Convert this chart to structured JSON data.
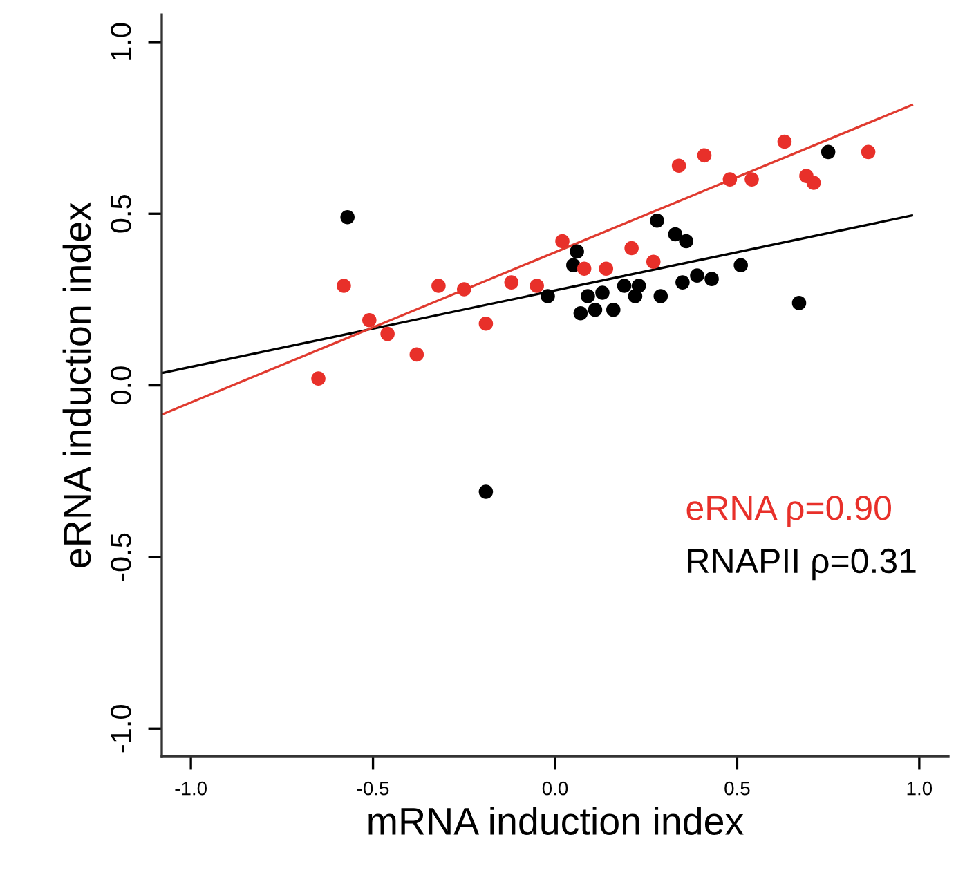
{
  "chart_data": {
    "type": "scatter",
    "xlabel": "mRNA induction index",
    "ylabel": "eRNA induction index",
    "xlim": [
      -1.08,
      1.08
    ],
    "ylim": [
      -1.08,
      1.08
    ],
    "xticks": [
      {
        "value": -1,
        "label": "-1.0"
      },
      {
        "value": -0.5,
        "label": "-0.5"
      },
      {
        "value": 0,
        "label": "0.0"
      },
      {
        "value": 0.5,
        "label": "0.5"
      },
      {
        "value": 1,
        "label": "1.0"
      }
    ],
    "yticks": [
      {
        "value": -1,
        "label": "-1.0"
      },
      {
        "value": -0.5,
        "label": "-0.5"
      },
      {
        "value": 0,
        "label": "0.0"
      },
      {
        "value": 0.5,
        "label": "0.5"
      },
      {
        "value": 1,
        "label": "1.0"
      }
    ],
    "grid": false,
    "legend": "right",
    "marker": "circle",
    "series": [
      {
        "name": "RNAPII ρ=0.31",
        "color": "#000000",
        "x": [
          -0.57,
          -0.19,
          -0.02,
          0.06,
          0.05,
          0.09,
          0.13,
          0.07,
          0.11,
          0.16,
          0.19,
          0.22,
          0.23,
          0.28,
          0.29,
          0.33,
          0.36,
          0.35,
          0.39,
          0.43,
          0.51,
          0.67,
          0.75
        ],
        "values": [
          0.49,
          -0.31,
          0.26,
          0.39,
          0.35,
          0.26,
          0.27,
          0.21,
          0.22,
          0.22,
          0.29,
          0.26,
          0.29,
          0.48,
          0.26,
          0.44,
          0.42,
          0.3,
          0.32,
          0.31,
          0.35,
          0.24,
          0.68
        ]
      },
      {
        "name": "eRNA ρ=0.90",
        "color": "#e8302a",
        "x": [
          -0.65,
          -0.58,
          -0.51,
          -0.46,
          -0.38,
          -0.32,
          -0.25,
          -0.19,
          -0.12,
          -0.05,
          0.02,
          0.08,
          0.14,
          0.21,
          0.27,
          0.34,
          0.41,
          0.48,
          0.54,
          0.63,
          0.69,
          0.71,
          0.86
        ],
        "values": [
          0.02,
          0.29,
          0.19,
          0.15,
          0.09,
          0.29,
          0.28,
          0.18,
          0.3,
          0.29,
          0.42,
          0.34,
          0.34,
          0.4,
          0.36,
          0.64,
          0.67,
          0.6,
          0.6,
          0.71,
          0.61,
          0.59,
          0.68
        ]
      },
      {
        "type": "line",
        "marker": "none",
        "color": "#000000",
        "x": [
          -1.08,
          0.98
        ],
        "values": [
          0.036,
          0.495
        ]
      },
      {
        "type": "line",
        "marker": "none",
        "color": "#e03a2f",
        "x": [
          -1.08,
          0.98
        ],
        "values": [
          -0.085,
          0.817
        ]
      }
    ]
  }
}
